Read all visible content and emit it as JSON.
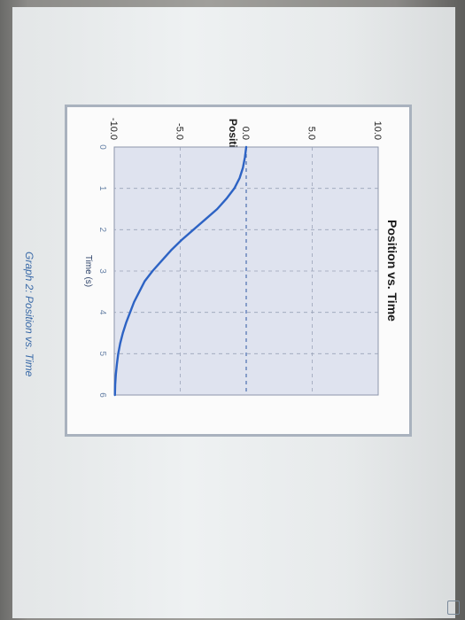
{
  "chart_data": {
    "type": "line",
    "title": "Position vs. Time",
    "xlabel": "Time (s)",
    "ylabel": "Position (m)",
    "xlim": [
      0,
      6
    ],
    "ylim": [
      -10,
      10
    ],
    "x_ticks": [
      "0",
      "1",
      "2",
      "3",
      "4",
      "5",
      "6"
    ],
    "y_ticks": [
      "-10.0",
      "-5.0",
      "0.0",
      "5.0",
      "10.0"
    ],
    "grid": true,
    "series": [
      {
        "x": [
          0,
          0.25,
          0.5,
          0.75,
          1,
          1.25,
          1.5,
          1.75,
          2,
          2.25,
          2.5,
          2.75,
          3,
          3.25,
          3.5,
          3.75,
          4,
          4.25,
          4.5,
          4.75,
          5,
          5.25,
          5.5,
          5.75,
          6
        ],
        "y": [
          0,
          -0.1,
          -0.25,
          -0.5,
          -0.9,
          -1.5,
          -2.2,
          -3.1,
          -4.0,
          -4.9,
          -5.7,
          -6.4,
          -7.1,
          -7.7,
          -8.1,
          -8.5,
          -8.8,
          -9.1,
          -9.35,
          -9.55,
          -9.7,
          -9.8,
          -9.88,
          -9.93,
          -9.95
        ],
        "color": "#2d63c4"
      }
    ]
  },
  "caption": "Graph 2: Position vs. Time",
  "colors": {
    "frame": "#a9b2be",
    "plot_fill": "#dfe3ef",
    "grid": "#9aa3b8",
    "zero_line": "#4a6fb0"
  }
}
